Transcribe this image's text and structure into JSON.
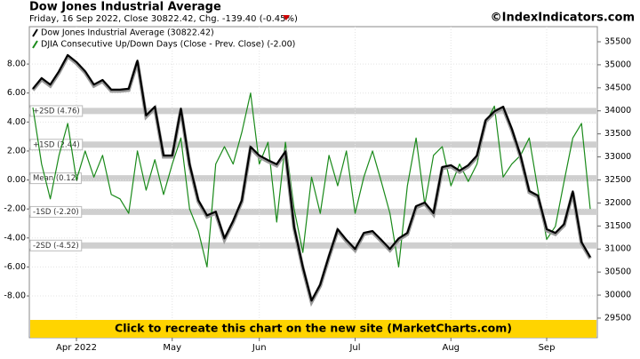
{
  "chart_data": {
    "type": "line",
    "title": "Dow Jones Industrial Average",
    "subtitle": "Friday, 16 Sep 2022, Close 30822.42, Chg. -139.40 (-0.45%)",
    "credit": "©IndexIndicators.com",
    "banner": "Click to recreate this chart on the new site (MarketCharts.com)",
    "categories": [
      null,
      null,
      null,
      null,
      null,
      "Apr 2022",
      null,
      null,
      null,
      null,
      null,
      null,
      null,
      null,
      null,
      null,
      "May",
      null,
      null,
      null,
      null,
      null,
      null,
      null,
      null,
      null,
      "Jun",
      null,
      null,
      null,
      null,
      null,
      null,
      null,
      null,
      null,
      null,
      "Jul",
      null,
      null,
      null,
      null,
      null,
      null,
      null,
      null,
      null,
      null,
      "Aug",
      null,
      null,
      null,
      null,
      null,
      null,
      null,
      null,
      null,
      null,
      "Sep",
      null,
      null,
      null,
      null,
      null
    ],
    "series": [
      {
        "name": "Dow Jones Industrial Average (30822.42)",
        "color": "#000000",
        "axis": "y2",
        "values": [
          34480,
          34710,
          34570,
          34860,
          35210,
          35060,
          34860,
          34570,
          34670,
          34460,
          34460,
          34480,
          35090,
          33900,
          34090,
          33030,
          33030,
          34050,
          32840,
          32060,
          31730,
          31810,
          31230,
          31610,
          32060,
          33220,
          33030,
          32930,
          32840,
          33120,
          31480,
          30610,
          29880,
          30230,
          30850,
          31430,
          31200,
          31000,
          31350,
          31390,
          31200,
          31000,
          31230,
          31350,
          31930,
          32010,
          31780,
          32780,
          32820,
          32700,
          32820,
          33030,
          33800,
          33990,
          34090,
          33610,
          33030,
          32260,
          32160,
          31430,
          31350,
          31540,
          32250,
          31150,
          30822.42
        ]
      },
      {
        "name": "DJIA Consecutive Up/Down Days (Close - Prev. Close) (-2.00)",
        "color": "#1a8a1a",
        "values": [
          5.0,
          1.1,
          -1.3,
          1.7,
          3.9,
          0,
          2.0,
          0.2,
          1.7,
          -1.0,
          -1.3,
          -2.3,
          2.0,
          -0.7,
          1.4,
          -1.0,
          1.1,
          2.9,
          -2.0,
          -3.5,
          -6.0,
          1.1,
          2.3,
          1.1,
          3.3,
          6.0,
          1.1,
          2.6,
          -2.9,
          2.6,
          -2.0,
          -5.0,
          0.2,
          -2.3,
          1.7,
          -0.4,
          2.0,
          -2.3,
          0.2,
          2.0,
          -0.1,
          -2.3,
          -6.0,
          -0.4,
          2.9,
          -1.7,
          1.7,
          2.3,
          -0.4,
          1.1,
          -0.1,
          1.1,
          3.9,
          5.1,
          0.2,
          1.1,
          1.7,
          2.9,
          -0.7,
          -4.1,
          -3.2,
          -0.1,
          2.9,
          3.9,
          -2.0
        ]
      }
    ],
    "ylim": [
      -10.88,
      10.58
    ],
    "yticks": [
      {
        "value": -8,
        "label": "-8.00"
      },
      {
        "value": -6,
        "label": "-6.00"
      },
      {
        "value": -4,
        "label": "-4.00"
      },
      {
        "value": -2,
        "label": "-2.00"
      },
      {
        "value": 0,
        "label": "0.00"
      },
      {
        "value": 2,
        "label": "2.00"
      },
      {
        "value": 4,
        "label": "4.00"
      },
      {
        "value": 6,
        "label": "6.00"
      },
      {
        "value": 8,
        "label": "8.00"
      }
    ],
    "y2lim": [
      29075,
      35828
    ],
    "y2ticks": [
      29500,
      30000,
      30500,
      31000,
      31500,
      32000,
      32500,
      33000,
      33500,
      34000,
      34500,
      35000,
      35500
    ],
    "reference_lines": [
      {
        "label": "+2SD (4.76)",
        "value": 4.76
      },
      {
        "label": "+1SD (2.44)",
        "value": 2.44
      },
      {
        "label": "Mean (0.12)",
        "value": 0.12
      },
      {
        "label": "-1SD (-2.20)",
        "value": -2.2
      },
      {
        "label": "-2SD (-4.52)",
        "value": -4.52
      }
    ],
    "grid": true
  }
}
